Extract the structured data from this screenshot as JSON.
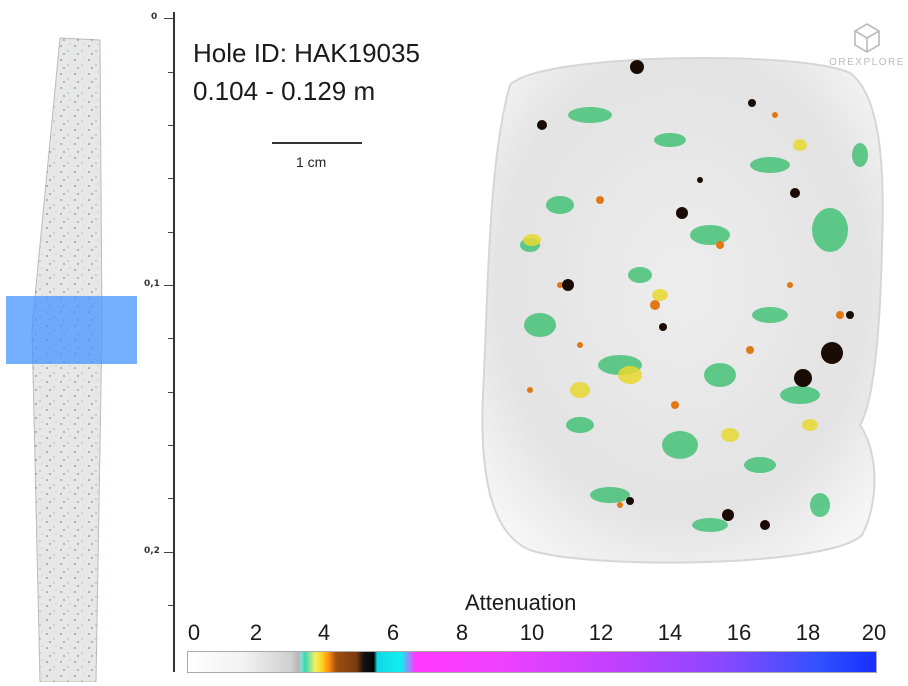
{
  "header": {
    "hole_id_text": "Hole ID: HAK19035",
    "depth_range_text": "0.104 - 0.129 m",
    "scale_bar_label": "1 cm"
  },
  "logo": {
    "text": "OREXPLORE",
    "icon": "hexagon-cube-logo-icon"
  },
  "depth_ruler": {
    "labels": [
      "0",
      "0,1",
      "0,2"
    ],
    "unit": "m"
  },
  "legend": {
    "title": "Attenuation",
    "ticks": [
      "0",
      "2",
      "4",
      "6",
      "8",
      "10",
      "12",
      "14",
      "16",
      "18",
      "20"
    ],
    "range": [
      0,
      20
    ]
  },
  "colors": {
    "selection_highlight": "#4696ff",
    "mineral_green": "#3cc070",
    "mineral_yellow": "#e8d830",
    "mineral_orange": "#e07818",
    "mineral_dark": "#1a0c04",
    "legend_high": "#1530ff",
    "legend_mid": "#ff38ff"
  }
}
